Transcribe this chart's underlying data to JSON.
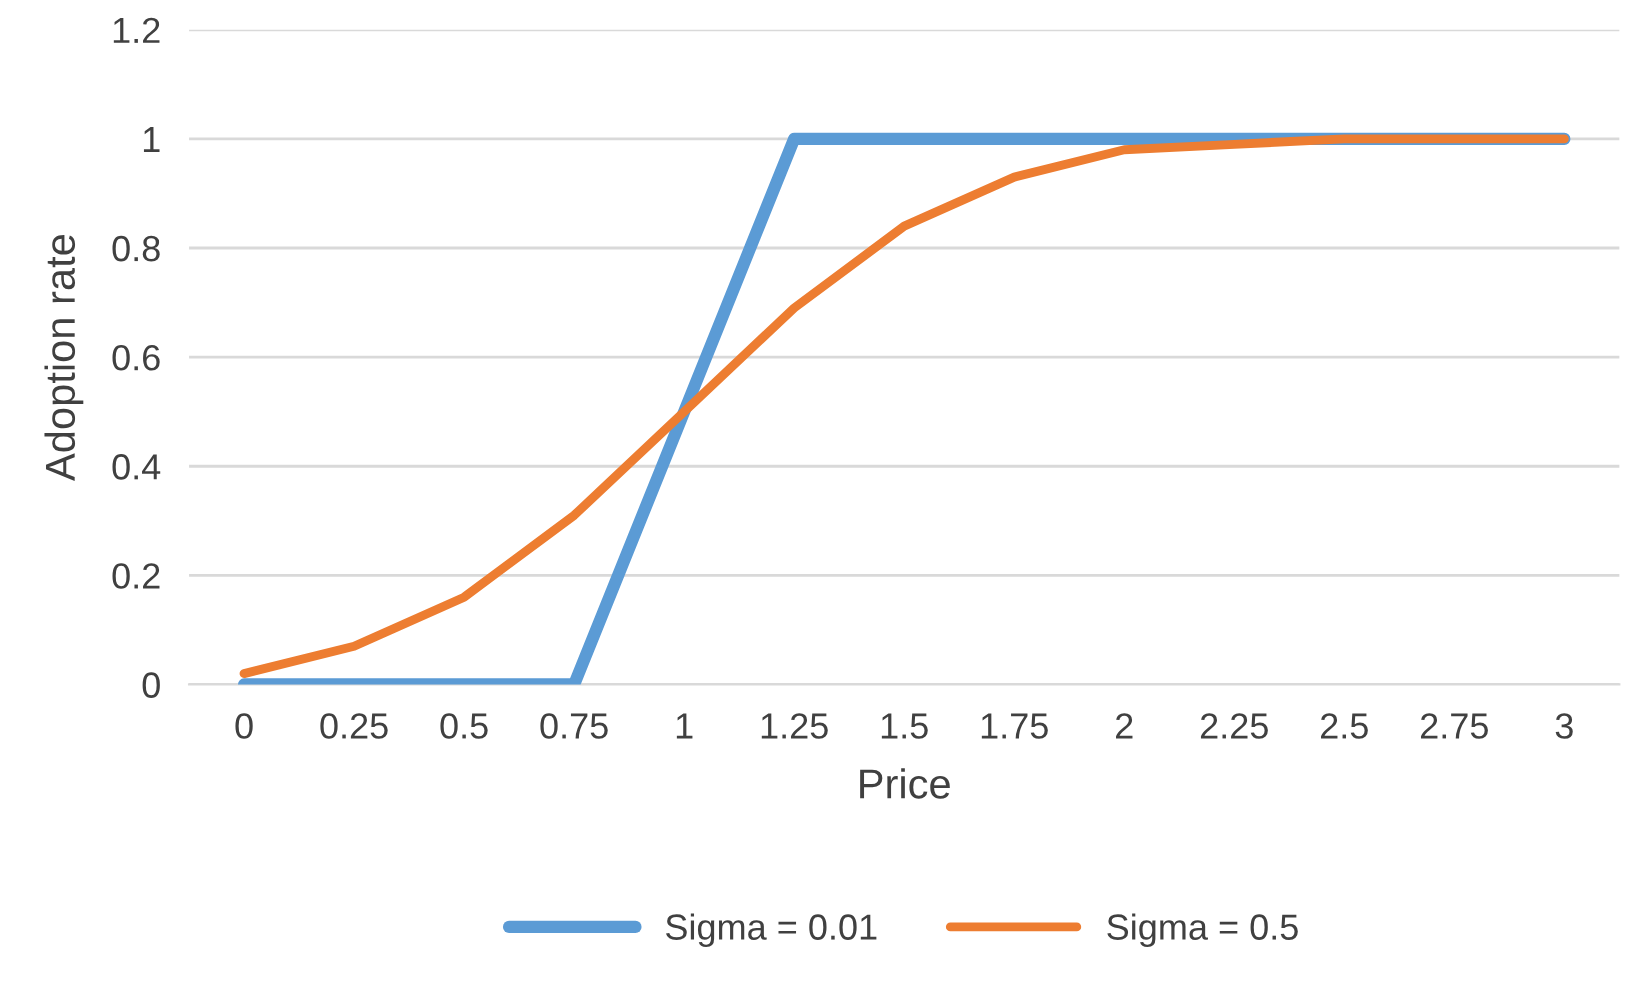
{
  "chart_data": {
    "type": "line",
    "xlabel": "Price",
    "ylabel": "Adoption rate",
    "categories": [
      "0",
      "0.25",
      "0.5",
      "0.75",
      "1",
      "1.25",
      "1.5",
      "1.75",
      "2",
      "2.25",
      "2.5",
      "2.75",
      "3"
    ],
    "series": [
      {
        "name": "Sigma = 0.01",
        "color": "#5b9bd5",
        "values": [
          0,
          0,
          0,
          0,
          0.5,
          1,
          1,
          1,
          1,
          1,
          1,
          1,
          1
        ]
      },
      {
        "name": "Sigma = 0.5",
        "color": "#ed7d31",
        "values": [
          0.02,
          0.07,
          0.16,
          0.31,
          0.5,
          0.69,
          0.84,
          0.93,
          0.98,
          0.99,
          1,
          1,
          1
        ]
      }
    ],
    "ylim": [
      0,
      1.2
    ],
    "yticks": [
      0,
      0.2,
      0.4,
      0.6,
      0.8,
      1,
      1.2
    ],
    "grid": "y",
    "legend": "bottom",
    "marker": "none",
    "line_style": "solid"
  }
}
